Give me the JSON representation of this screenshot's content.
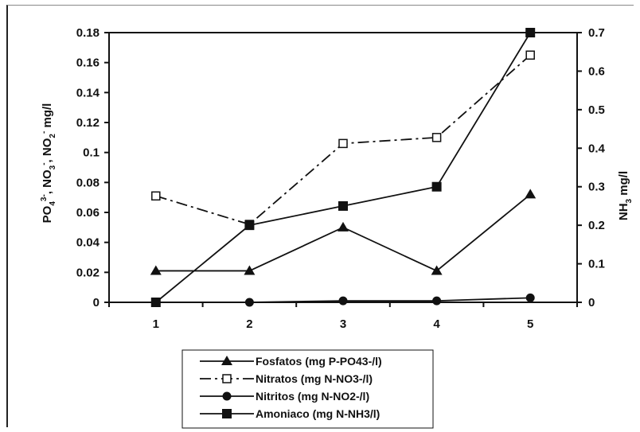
{
  "chart_data": {
    "type": "line",
    "categories": [
      "1",
      "2",
      "3",
      "4",
      "5"
    ],
    "y_left": {
      "label_parts": {
        "po": "PO",
        "po_sub": "4",
        "po_sup": "3-",
        "no3": "NO",
        "no3_sub": "3",
        "no3_sup": "-",
        "no2": "NO",
        "no2_sub": "2",
        "no2_sup": "-",
        "unit": "mg/l"
      },
      "ticks": [
        "0",
        "0.02",
        "0.04",
        "0.06",
        "0.08",
        "0.1",
        "0.12",
        "0.14",
        "0.16",
        "0.18"
      ],
      "lim": [
        0,
        0.18
      ]
    },
    "y_right": {
      "label_parts": {
        "nh": "NH",
        "nh_sub": "3",
        "unit": "mg/l"
      },
      "ticks": [
        "0",
        "0.1",
        "0.2",
        "0.3",
        "0.4",
        "0.5",
        "0.6",
        "0.7"
      ],
      "lim": [
        0,
        0.7
      ]
    },
    "series": [
      {
        "name": "Fosfatos (mg P-PO43-/l)",
        "axis": "left",
        "marker": "triangle",
        "dash": "solid",
        "values": [
          0.021,
          0.021,
          0.05,
          0.021,
          0.072
        ]
      },
      {
        "name": "Nitratos (mg N-NO3-/l)",
        "axis": "left",
        "marker": "open-square",
        "dash": "dashdot",
        "values": [
          0.071,
          0.052,
          0.106,
          0.11,
          0.165
        ]
      },
      {
        "name": "Nitritos (mg N-NO2-/l)",
        "axis": "left",
        "marker": "circle",
        "dash": "solid",
        "values": [
          0.0,
          0.0,
          0.001,
          0.001,
          0.003
        ]
      },
      {
        "name": "Amoniaco (mg N-NH3/l)",
        "axis": "right",
        "marker": "square",
        "dash": "solid",
        "values": [
          0.0,
          0.2,
          0.25,
          0.3,
          0.7
        ]
      }
    ],
    "legend_position": "bottom",
    "grid": false
  }
}
